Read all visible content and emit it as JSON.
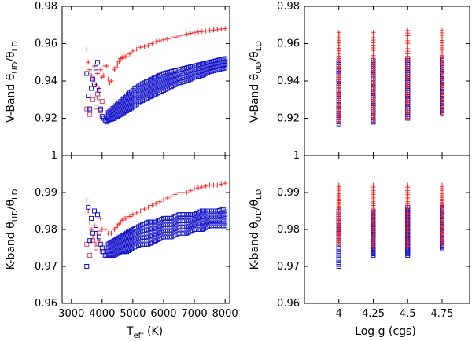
{
  "colors": {
    "red": "#ff2020",
    "blue": "#1010cc",
    "pink": "#d04a6a",
    "lightblue": "#5a5ad8"
  },
  "labels": {
    "teff": "T",
    "teff_sub": "eff",
    "teff_unit": " (K)",
    "logg": "Log g (cgs)",
    "vband_prefix": "V-Band θ",
    "kband_prefix": "K-band θ",
    "sub_ud": "UD",
    "slash_theta": "/θ",
    "sub_ld": "LD"
  },
  "chart_data": [
    {
      "id": "vband-vs-teff",
      "type": "scatter",
      "xlabel": "",
      "ylabel": "V-Band θUD/θLD",
      "xlim": [
        2700,
        8150
      ],
      "ylim": [
        0.9,
        0.98
      ],
      "xticks": [
        3000,
        4000,
        5000,
        6000,
        7000,
        8000
      ],
      "yticks": [
        0.92,
        0.94,
        0.96,
        0.98
      ],
      "ytick_labels": [
        "0.92",
        "0.94",
        "0.96",
        "0.98"
      ],
      "series": [
        {
          "marker": "plus",
          "color": "red",
          "x": [
            3500,
            3550,
            3600,
            3650,
            3700,
            3750,
            3800,
            3850,
            3900,
            3950,
            4000,
            4050,
            4100,
            4150,
            4200,
            4250,
            4300,
            4400,
            4500,
            4600,
            4700,
            4800,
            5000,
            5250,
            5500,
            5750,
            6000,
            6250,
            6500,
            6750,
            7000,
            7250,
            7500,
            7750,
            8000
          ],
          "y": [
            0.957,
            0.95,
            0.946,
            0.943,
            0.941,
            0.948,
            0.938,
            0.944,
            0.936,
            0.946,
            0.942,
            0.943,
            0.948,
            0.948,
            0.941,
            0.939,
            0.94,
            0.946,
            0.949,
            0.952,
            0.953,
            0.953,
            0.956,
            0.958,
            0.959,
            0.961,
            0.962,
            0.963,
            0.964,
            0.965,
            0.966,
            0.9665,
            0.967,
            0.9675,
            0.968
          ]
        },
        {
          "marker": "square",
          "color": "pink",
          "x": [
            3500,
            3600,
            3700,
            3800,
            3850,
            3900,
            3950,
            4000
          ],
          "y": [
            0.925,
            0.922,
            0.93,
            0.926,
            0.933,
            0.931,
            0.924,
            0.929
          ]
        },
        {
          "marker": "square",
          "color": "blue",
          "band": true,
          "x": [
            4200,
            4400,
            4600,
            4800,
            5000,
            5250,
            5500,
            5750,
            6000,
            6250,
            6500,
            6750,
            7000,
            7250,
            7500,
            7750,
            8000
          ],
          "y_high": [
            0.923,
            0.926,
            0.929,
            0.932,
            0.935,
            0.938,
            0.94,
            0.942,
            0.944,
            0.945,
            0.946,
            0.947,
            0.948,
            0.949,
            0.95,
            0.951,
            0.952
          ],
          "y_low": [
            0.919,
            0.92,
            0.922,
            0.924,
            0.926,
            0.929,
            0.931,
            0.933,
            0.935,
            0.937,
            0.939,
            0.94,
            0.942,
            0.943,
            0.945,
            0.946,
            0.947
          ],
          "rows": 7
        },
        {
          "marker": "square",
          "color": "blue",
          "x": [
            3500,
            3550,
            3600,
            3650,
            3700,
            3750,
            3800,
            3850,
            3900,
            3950,
            4000,
            4050,
            4100,
            4150
          ],
          "y": [
            0.944,
            0.932,
            0.925,
            0.936,
            0.941,
            0.938,
            0.947,
            0.95,
            0.935,
            0.925,
            0.921,
            0.92,
            0.919,
            0.918
          ]
        }
      ]
    },
    {
      "id": "vband-vs-logg",
      "type": "scatter",
      "xlabel": "",
      "ylabel": "V-Band θUD/θLD",
      "xlim": [
        3.75,
        4.95
      ],
      "ylim": [
        0.9,
        0.98
      ],
      "xticks": [
        4,
        4.25,
        4.5,
        4.75
      ],
      "yticks": [
        0.92,
        0.94,
        0.96,
        0.98
      ],
      "ytick_labels": [
        "0.92",
        "0.94",
        "0.96",
        "0.98"
      ],
      "columns": [
        {
          "x": 4.0,
          "red_range": [
            0.918,
            0.966
          ],
          "blue_range": [
            0.917,
            0.951
          ]
        },
        {
          "x": 4.25,
          "red_range": [
            0.919,
            0.966
          ],
          "blue_range": [
            0.918,
            0.951
          ]
        },
        {
          "x": 4.5,
          "red_range": [
            0.92,
            0.967
          ],
          "blue_range": [
            0.92,
            0.952
          ]
        },
        {
          "x": 4.75,
          "red_range": [
            0.922,
            0.967
          ],
          "blue_range": [
            0.923,
            0.952
          ]
        }
      ]
    },
    {
      "id": "kband-vs-teff",
      "type": "scatter",
      "xlabel": "Teff (K)",
      "ylabel": "K-band θUD/θLD",
      "xlim": [
        2700,
        8150
      ],
      "ylim": [
        0.96,
        1.0
      ],
      "xticks": [
        3000,
        4000,
        5000,
        6000,
        7000,
        8000
      ],
      "xtick_labels": [
        "3000",
        "4000",
        "5000",
        "6000",
        "7000",
        "8000"
      ],
      "yticks": [
        0.96,
        0.97,
        0.98,
        0.99,
        1.0
      ],
      "ytick_labels": [
        "0.96",
        "0.97",
        "0.98",
        "0.99",
        "1"
      ],
      "series": [
        {
          "marker": "plus",
          "color": "red",
          "x": [
            3500,
            3550,
            3600,
            3650,
            3700,
            3750,
            3800,
            3850,
            3900,
            3950,
            4000,
            4100,
            4200,
            4300,
            4400,
            4500,
            4600,
            4700,
            4800,
            5000,
            5250,
            5500,
            5750,
            6000,
            6250,
            6500,
            6750,
            7000,
            7250,
            7500,
            7750,
            8000
          ],
          "y": [
            0.988,
            0.985,
            0.982,
            0.98,
            0.978,
            0.981,
            0.976,
            0.979,
            0.977,
            0.983,
            0.98,
            0.98,
            0.979,
            0.979,
            0.98,
            0.981,
            0.982,
            0.983,
            0.983,
            0.984,
            0.985,
            0.986,
            0.987,
            0.988,
            0.989,
            0.99,
            0.99,
            0.991,
            0.9915,
            0.992,
            0.992,
            0.9925
          ]
        },
        {
          "marker": "square",
          "color": "pink",
          "x": [
            3500,
            3600,
            3700,
            3800,
            3900,
            4000
          ],
          "y": [
            0.976,
            0.973,
            0.977,
            0.975,
            0.979,
            0.974
          ]
        },
        {
          "marker": "square",
          "color": "blue",
          "band": true,
          "x": [
            4200,
            4400,
            4600,
            4800,
            5000,
            5250,
            5500,
            5750,
            6000,
            6250,
            6500,
            6750,
            7000,
            7250,
            7500,
            7750,
            8000
          ],
          "y_high": [
            0.976,
            0.977,
            0.978,
            0.979,
            0.98,
            0.981,
            0.982,
            0.982,
            0.983,
            0.983,
            0.984,
            0.984,
            0.984,
            0.985,
            0.985,
            0.985,
            0.9855
          ],
          "y_low": [
            0.973,
            0.973,
            0.974,
            0.974,
            0.975,
            0.976,
            0.976,
            0.977,
            0.978,
            0.978,
            0.979,
            0.979,
            0.98,
            0.98,
            0.981,
            0.981,
            0.981
          ],
          "rows": 7
        },
        {
          "marker": "square",
          "color": "blue",
          "x": [
            3500,
            3550,
            3600,
            3650,
            3700,
            3750,
            3800,
            3850,
            3900,
            3950,
            4000,
            4050,
            4100,
            4150
          ],
          "y": [
            0.97,
            0.986,
            0.977,
            0.983,
            0.979,
            0.985,
            0.98,
            0.984,
            0.978,
            0.976,
            0.975,
            0.974,
            0.973,
            0.973
          ]
        }
      ]
    },
    {
      "id": "kband-vs-logg",
      "type": "scatter",
      "xlabel": "Log g (cgs)",
      "ylabel": "K-band θUD/θLD",
      "xlim": [
        3.75,
        4.95
      ],
      "ylim": [
        0.96,
        1.0
      ],
      "xticks": [
        4,
        4.25,
        4.5,
        4.75
      ],
      "xtick_labels": [
        "4",
        "4.25",
        "4.5",
        "4.75"
      ],
      "yticks": [
        0.96,
        0.97,
        0.98,
        0.99,
        1.0
      ],
      "ytick_labels": [
        "0.96",
        "0.97",
        "0.98",
        "0.99",
        "1"
      ],
      "columns": [
        {
          "x": 4.0,
          "red_range": [
            0.976,
            0.992
          ],
          "blue_range": [
            0.97,
            0.985
          ]
        },
        {
          "x": 4.25,
          "red_range": [
            0.975,
            0.992
          ],
          "blue_range": [
            0.973,
            0.985
          ]
        },
        {
          "x": 4.5,
          "red_range": [
            0.975,
            0.992
          ],
          "blue_range": [
            0.973,
            0.986
          ]
        },
        {
          "x": 4.75,
          "red_range": [
            0.976,
            0.992
          ],
          "blue_range": [
            0.975,
            0.986
          ]
        }
      ]
    }
  ]
}
